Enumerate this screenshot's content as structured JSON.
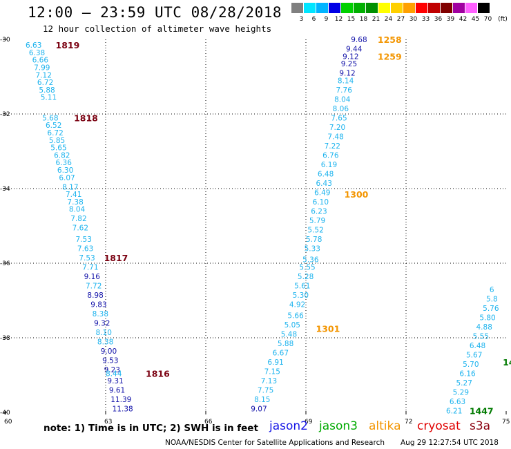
{
  "header": {
    "title": "12:00 – 23:59 UTC 08/28/2018",
    "subtitle": "12 hour collection of altimeter wave heights"
  },
  "colorbar": {
    "unit": "(ft)",
    "bins": [
      {
        "label": "3",
        "color": "#808080"
      },
      {
        "label": "6",
        "color": "#00e5ff"
      },
      {
        "label": "9",
        "color": "#00b4ff"
      },
      {
        "label": "12",
        "color": "#0000e6"
      },
      {
        "label": "15",
        "color": "#00d000"
      },
      {
        "label": "18",
        "color": "#00b000"
      },
      {
        "label": "21",
        "color": "#009000"
      },
      {
        "label": "24",
        "color": "#ffff00"
      },
      {
        "label": "27",
        "color": "#ffd000"
      },
      {
        "label": "30",
        "color": "#ffa000"
      },
      {
        "label": "33",
        "color": "#ff0000"
      },
      {
        "label": "36",
        "color": "#c00000"
      },
      {
        "label": "39",
        "color": "#800000"
      },
      {
        "label": "42",
        "color": "#a000a0"
      },
      {
        "label": "45",
        "color": "#ff60ff"
      },
      {
        "label": "70",
        "color": "#000000"
      }
    ]
  },
  "axes": {
    "lat_ticks": [
      "-30",
      "-32",
      "-34",
      "-36",
      "-38",
      "-40"
    ],
    "lon_ticks": [
      "60",
      "63",
      "66",
      "69",
      "72",
      "75"
    ],
    "lat_range": [
      -40,
      -30
    ],
    "lon_range": [
      60,
      75
    ]
  },
  "colors": {
    "light": "#1cb3ee",
    "dark": "#1010a8",
    "s3a_time": "#7a0010",
    "altika_time": "#f39500",
    "jason3_time": "#007a00"
  },
  "tracks": {
    "s3a": {
      "pass_times": [
        {
          "label": "1819",
          "lat": -30.15,
          "lon": 61.5
        },
        {
          "label": "1818",
          "lat": -32.1,
          "lon": 62.05
        },
        {
          "label": "1817",
          "lat": -35.85,
          "lon": 62.95
        },
        {
          "label": "1816",
          "lat": -38.95,
          "lon": 64.2
        }
      ],
      "points": [
        {
          "v": "6.63",
          "lat": -30.15,
          "lon": 60.6,
          "dark": false
        },
        {
          "v": "6.38",
          "lat": -30.35,
          "lon": 60.7,
          "dark": false
        },
        {
          "v": "6.66",
          "lat": -30.55,
          "lon": 60.8,
          "dark": false
        },
        {
          "v": "7.99",
          "lat": -30.75,
          "lon": 60.85,
          "dark": false
        },
        {
          "v": "7.12",
          "lat": -30.95,
          "lon": 60.9,
          "dark": false
        },
        {
          "v": "6.72",
          "lat": -31.15,
          "lon": 60.95,
          "dark": false
        },
        {
          "v": "5.88",
          "lat": -31.35,
          "lon": 61.0,
          "dark": false
        },
        {
          "v": "5.11",
          "lat": -31.55,
          "lon": 61.05,
          "dark": false
        },
        {
          "v": "5.68",
          "lat": -32.1,
          "lon": 61.1,
          "dark": false
        },
        {
          "v": "6.52",
          "lat": -32.3,
          "lon": 61.2,
          "dark": false
        },
        {
          "v": "6.72",
          "lat": -32.5,
          "lon": 61.25,
          "dark": false
        },
        {
          "v": "5.85",
          "lat": -32.7,
          "lon": 61.3,
          "dark": false
        },
        {
          "v": "5.65",
          "lat": -32.9,
          "lon": 61.35,
          "dark": false
        },
        {
          "v": "6.82",
          "lat": -33.1,
          "lon": 61.45,
          "dark": false
        },
        {
          "v": "6.36",
          "lat": -33.3,
          "lon": 61.5,
          "dark": false
        },
        {
          "v": "6.30",
          "lat": -33.5,
          "lon": 61.55,
          "dark": false
        },
        {
          "v": "6.07",
          "lat": -33.7,
          "lon": 61.6,
          "dark": false
        },
        {
          "v": "8.17",
          "lat": -33.95,
          "lon": 61.7,
          "dark": false
        },
        {
          "v": "7.41",
          "lat": -34.15,
          "lon": 61.8,
          "dark": false
        },
        {
          "v": "7.38",
          "lat": -34.35,
          "lon": 61.85,
          "dark": false
        },
        {
          "v": "8.04",
          "lat": -34.55,
          "lon": 61.9,
          "dark": false
        },
        {
          "v": "7.82",
          "lat": -34.8,
          "lon": 61.95,
          "dark": false
        },
        {
          "v": "7.62",
          "lat": -35.05,
          "lon": 62.0,
          "dark": false
        },
        {
          "v": "7.53",
          "lat": -35.35,
          "lon": 62.1,
          "dark": false
        },
        {
          "v": "7.63",
          "lat": -35.6,
          "lon": 62.15,
          "dark": false
        },
        {
          "v": "7.53",
          "lat": -35.85,
          "lon": 62.2,
          "dark": false
        },
        {
          "v": "7.71",
          "lat": -36.1,
          "lon": 62.3,
          "dark": false
        },
        {
          "v": "9.16",
          "lat": -36.35,
          "lon": 62.35,
          "dark": true
        },
        {
          "v": "7.72",
          "lat": -36.6,
          "lon": 62.4,
          "dark": false
        },
        {
          "v": "8.98",
          "lat": -36.85,
          "lon": 62.45,
          "dark": true
        },
        {
          "v": "9.83",
          "lat": -37.1,
          "lon": 62.55,
          "dark": true
        },
        {
          "v": "8.38",
          "lat": -37.35,
          "lon": 62.6,
          "dark": false
        },
        {
          "v": "9.32",
          "lat": -37.6,
          "lon": 62.65,
          "dark": true
        },
        {
          "v": "8.10",
          "lat": -37.85,
          "lon": 62.7,
          "dark": false
        },
        {
          "v": "8.38",
          "lat": -38.1,
          "lon": 62.75,
          "dark": false
        },
        {
          "v": "9.00",
          "lat": -38.35,
          "lon": 62.85,
          "dark": true
        },
        {
          "v": "9.53",
          "lat": -38.6,
          "lon": 62.9,
          "dark": true
        },
        {
          "v": "9.23",
          "lat": -38.85,
          "lon": 62.95,
          "dark": true
        },
        {
          "v": "8.44",
          "lat": -38.95,
          "lon": 63.0,
          "dark": false
        },
        {
          "v": "9.31",
          "lat": -39.15,
          "lon": 63.05,
          "dark": true
        },
        {
          "v": "9.61",
          "lat": -39.4,
          "lon": 63.1,
          "dark": true
        },
        {
          "v": "11.39",
          "lat": -39.65,
          "lon": 63.15,
          "dark": true
        },
        {
          "v": "11.38",
          "lat": -39.9,
          "lon": 63.2,
          "dark": true
        }
      ]
    },
    "altika": {
      "pass_times": [
        {
          "label": "1258",
          "lat": -30.0,
          "lon": 71.15
        },
        {
          "label": "1259",
          "lat": -30.45,
          "lon": 71.15
        },
        {
          "label": "1300",
          "lat": -34.15,
          "lon": 70.15
        },
        {
          "label": "1301",
          "lat": -37.75,
          "lon": 69.3
        }
      ],
      "points": [
        {
          "v": "9.68",
          "lat": -30.0,
          "lon": 70.35,
          "dark": true
        },
        {
          "v": "9.44",
          "lat": -30.25,
          "lon": 70.2,
          "dark": true
        },
        {
          "v": "9.12",
          "lat": -30.45,
          "lon": 70.1,
          "dark": true
        },
        {
          "v": "9.25",
          "lat": -30.65,
          "lon": 70.05,
          "dark": true
        },
        {
          "v": "9.12",
          "lat": -30.9,
          "lon": 70.0,
          "dark": true
        },
        {
          "v": "8.14",
          "lat": -31.1,
          "lon": 69.95,
          "dark": false
        },
        {
          "v": "7.76",
          "lat": -31.35,
          "lon": 69.9,
          "dark": false
        },
        {
          "v": "8.04",
          "lat": -31.6,
          "lon": 69.85,
          "dark": false
        },
        {
          "v": "8.06",
          "lat": -31.85,
          "lon": 69.8,
          "dark": false
        },
        {
          "v": "7.65",
          "lat": -32.1,
          "lon": 69.75,
          "dark": false
        },
        {
          "v": "7.20",
          "lat": -32.35,
          "lon": 69.7,
          "dark": false
        },
        {
          "v": "7.48",
          "lat": -32.6,
          "lon": 69.65,
          "dark": false
        },
        {
          "v": "7.22",
          "lat": -32.85,
          "lon": 69.55,
          "dark": false
        },
        {
          "v": "6.76",
          "lat": -33.1,
          "lon": 69.5,
          "dark": false
        },
        {
          "v": "6.19",
          "lat": -33.35,
          "lon": 69.45,
          "dark": false
        },
        {
          "v": "6.48",
          "lat": -33.6,
          "lon": 69.35,
          "dark": false
        },
        {
          "v": "6.43",
          "lat": -33.85,
          "lon": 69.3,
          "dark": false
        },
        {
          "v": "6.49",
          "lat": -34.1,
          "lon": 69.25,
          "dark": false
        },
        {
          "v": "6.10",
          "lat": -34.35,
          "lon": 69.2,
          "dark": false
        },
        {
          "v": "6.23",
          "lat": -34.6,
          "lon": 69.15,
          "dark": false
        },
        {
          "v": "5.79",
          "lat": -34.85,
          "lon": 69.1,
          "dark": false
        },
        {
          "v": "5.52",
          "lat": -35.1,
          "lon": 69.05,
          "dark": false
        },
        {
          "v": "5.78",
          "lat": -35.35,
          "lon": 69.0,
          "dark": false
        },
        {
          "v": "5.33",
          "lat": -35.6,
          "lon": 68.95,
          "dark": false
        },
        {
          "v": "5.36",
          "lat": -35.9,
          "lon": 68.9,
          "dark": false
        },
        {
          "v": "5.55",
          "lat": -36.1,
          "lon": 68.8,
          "dark": false
        },
        {
          "v": "5.28",
          "lat": -36.35,
          "lon": 68.75,
          "dark": false
        },
        {
          "v": "5.61",
          "lat": -36.6,
          "lon": 68.65,
          "dark": false
        },
        {
          "v": "5.30",
          "lat": -36.85,
          "lon": 68.6,
          "dark": false
        },
        {
          "v": "4.92",
          "lat": -37.1,
          "lon": 68.5,
          "dark": false
        },
        {
          "v": "5.66",
          "lat": -37.4,
          "lon": 68.45,
          "dark": false
        },
        {
          "v": "5.05",
          "lat": -37.65,
          "lon": 68.35,
          "dark": false
        },
        {
          "v": "5.48",
          "lat": -37.9,
          "lon": 68.25,
          "dark": false
        },
        {
          "v": "5.88",
          "lat": -38.15,
          "lon": 68.15,
          "dark": false
        },
        {
          "v": "6.67",
          "lat": -38.4,
          "lon": 68.0,
          "dark": false
        },
        {
          "v": "6.91",
          "lat": -38.65,
          "lon": 67.85,
          "dark": false
        },
        {
          "v": "7.15",
          "lat": -38.9,
          "lon": 67.75,
          "dark": false
        },
        {
          "v": "7.13",
          "lat": -39.15,
          "lon": 67.65,
          "dark": false
        },
        {
          "v": "7.75",
          "lat": -39.4,
          "lon": 67.55,
          "dark": false
        },
        {
          "v": "8.15",
          "lat": -39.65,
          "lon": 67.45,
          "dark": false
        },
        {
          "v": "9.07",
          "lat": -39.9,
          "lon": 67.35,
          "dark": true
        }
      ]
    },
    "jason3": {
      "pass_times": [
        {
          "label": "1447",
          "lat": -39.95,
          "lon": 73.9
        },
        {
          "label": "14",
          "lat": -38.65,
          "lon": 74.9
        }
      ],
      "points": [
        {
          "v": "6.21",
          "lat": -39.95,
          "lon": 73.2,
          "dark": false
        },
        {
          "v": "6.63",
          "lat": -39.7,
          "lon": 73.3,
          "dark": false
        },
        {
          "v": "5.29",
          "lat": -39.45,
          "lon": 73.4,
          "dark": false
        },
        {
          "v": "5.27",
          "lat": -39.2,
          "lon": 73.5,
          "dark": false
        },
        {
          "v": "6.16",
          "lat": -38.95,
          "lon": 73.6,
          "dark": false
        },
        {
          "v": "5.70",
          "lat": -38.7,
          "lon": 73.7,
          "dark": false
        },
        {
          "v": "5.67",
          "lat": -38.45,
          "lon": 73.8,
          "dark": false
        },
        {
          "v": "6.48",
          "lat": -38.2,
          "lon": 73.9,
          "dark": false
        },
        {
          "v": "5.55",
          "lat": -37.95,
          "lon": 74.0,
          "dark": false
        },
        {
          "v": "4.88",
          "lat": -37.7,
          "lon": 74.1,
          "dark": false
        },
        {
          "v": "5.80",
          "lat": -37.45,
          "lon": 74.2,
          "dark": false
        },
        {
          "v": "5.76",
          "lat": -37.2,
          "lon": 74.3,
          "dark": false
        },
        {
          "v": "5.8",
          "lat": -36.95,
          "lon": 74.4,
          "dark": false
        },
        {
          "v": "6",
          "lat": -36.7,
          "lon": 74.5,
          "dark": false
        }
      ]
    }
  },
  "footer": {
    "note": "note:  1) Time is in UTC;  2) SWH is in feet",
    "legend": [
      {
        "label": "jason2",
        "color": "#1414e6"
      },
      {
        "label": "jason3",
        "color": "#00aa00"
      },
      {
        "label": "altika",
        "color": "#f39500"
      },
      {
        "label": "cryosat",
        "color": "#e00000"
      },
      {
        "label": "s3a",
        "color": "#8a0010"
      }
    ],
    "credit": "NOAA/NESDIS Center for Satellite Applications and Research",
    "timestamp": "Aug 29 12:27:54 UTC 2018"
  }
}
